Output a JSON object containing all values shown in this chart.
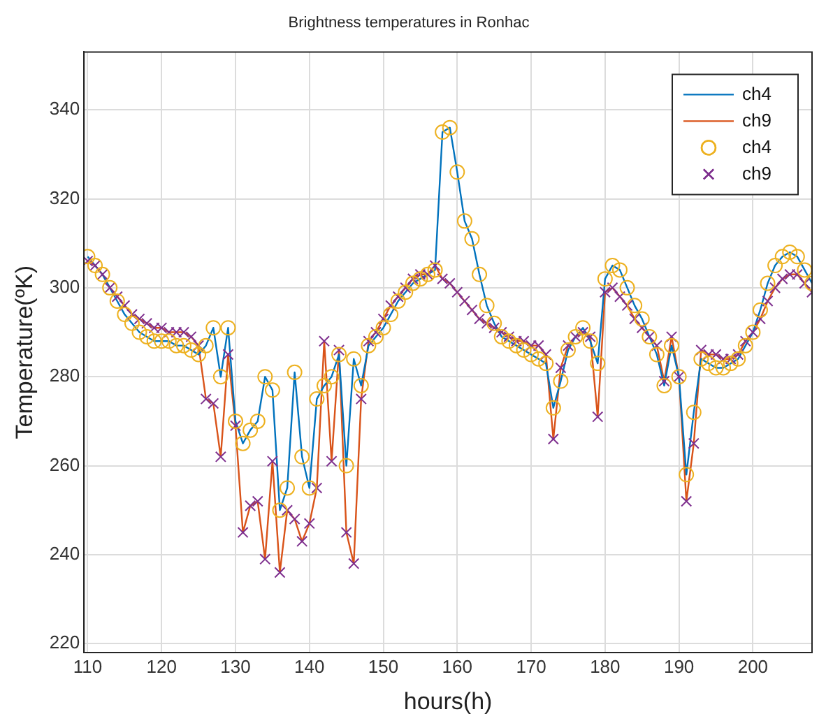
{
  "chart_data": {
    "type": "line",
    "title": "Brightness temperatures in Ronhac",
    "xlabel": "hours(h)",
    "ylabel": "Temperature(ºK)",
    "xlim": [
      109.5,
      208
    ],
    "xticks": [
      110,
      120,
      130,
      140,
      150,
      160,
      170,
      180,
      190,
      200
    ],
    "ylim": [
      218,
      353
    ],
    "yticks": [
      220,
      240,
      260,
      280,
      300,
      320,
      340
    ],
    "grid": true,
    "legend": "top right",
    "x": [
      110,
      111,
      112,
      113,
      114,
      115,
      116,
      117,
      118,
      119,
      120,
      121,
      122,
      123,
      124,
      125,
      126,
      127,
      128,
      129,
      130,
      131,
      132,
      133,
      134,
      135,
      136,
      137,
      138,
      139,
      140,
      141,
      142,
      143,
      144,
      145,
      146,
      147,
      148,
      149,
      150,
      151,
      152,
      153,
      154,
      155,
      156,
      157,
      158,
      159,
      160,
      161,
      162,
      163,
      164,
      165,
      166,
      167,
      168,
      169,
      170,
      171,
      172,
      173,
      174,
      175,
      176,
      177,
      178,
      179,
      180,
      181,
      182,
      183,
      184,
      185,
      186,
      187,
      188,
      189,
      190,
      191,
      192,
      193,
      194,
      195,
      196,
      197,
      198,
      199,
      200,
      201,
      202,
      203,
      204,
      205,
      206,
      207,
      208
    ],
    "series": [
      {
        "name": "ch4",
        "type": "line",
        "color": "#0072bd",
        "values": [
          307,
          305,
          303,
          300,
          297,
          294,
          292,
          290,
          289,
          288,
          288,
          288,
          287,
          287,
          286,
          285,
          287,
          291,
          280,
          291,
          270,
          265,
          268,
          270,
          280,
          277,
          250,
          255,
          281,
          262,
          255,
          275,
          278,
          280,
          285,
          260,
          284,
          278,
          287,
          289,
          291,
          294,
          297,
          299,
          301,
          302,
          303,
          304,
          335,
          336,
          326,
          315,
          311,
          303,
          296,
          292,
          289,
          288,
          287,
          286,
          285,
          284,
          283,
          273,
          279,
          286,
          289,
          291,
          288,
          283,
          302,
          305,
          304,
          300,
          296,
          293,
          289,
          285,
          278,
          287,
          280,
          258,
          272,
          284,
          283,
          282,
          282,
          283,
          284,
          287,
          290,
          295,
          301,
          305,
          307,
          308,
          307,
          304,
          301
        ]
      },
      {
        "name": "ch9",
        "type": "line",
        "color": "#d95319",
        "values": [
          306,
          305,
          303,
          300,
          298,
          296,
          294,
          293,
          292,
          291,
          291,
          290,
          290,
          290,
          289,
          287,
          275,
          274,
          262,
          285,
          269,
          245,
          251,
          252,
          239,
          261,
          236,
          250,
          248,
          243,
          247,
          255,
          288,
          261,
          286,
          245,
          238,
          275,
          288,
          290,
          293,
          296,
          298,
          300,
          302,
          303,
          303,
          305,
          302,
          301,
          299,
          297,
          295,
          293,
          292,
          291,
          290,
          289,
          288,
          288,
          287,
          287,
          285,
          266,
          282,
          287,
          289,
          290,
          289,
          271,
          299,
          300,
          298,
          296,
          293,
          291,
          289,
          287,
          279,
          289,
          280,
          252,
          265,
          286,
          285,
          285,
          284,
          284,
          285,
          288,
          290,
          293,
          297,
          300,
          302,
          303,
          303,
          301,
          299
        ]
      },
      {
        "name": "ch4",
        "type": "scatter",
        "marker": "circle",
        "color": "#edb120",
        "values": [
          307,
          305,
          303,
          300,
          297,
          294,
          292,
          290,
          289,
          288,
          288,
          288,
          287,
          287,
          286,
          285,
          287,
          291,
          280,
          291,
          270,
          265,
          268,
          270,
          280,
          277,
          250,
          255,
          281,
          262,
          255,
          275,
          278,
          280,
          285,
          260,
          284,
          278,
          287,
          289,
          291,
          294,
          297,
          299,
          301,
          302,
          303,
          304,
          335,
          336,
          326,
          315,
          311,
          303,
          296,
          292,
          289,
          288,
          287,
          286,
          285,
          284,
          283,
          273,
          279,
          286,
          289,
          291,
          288,
          283,
          302,
          305,
          304,
          300,
          296,
          293,
          289,
          285,
          278,
          287,
          280,
          258,
          272,
          284,
          283,
          282,
          282,
          283,
          284,
          287,
          290,
          295,
          301,
          305,
          307,
          308,
          307,
          304,
          301
        ]
      },
      {
        "name": "ch9",
        "type": "scatter",
        "marker": "cross",
        "color": "#7e2f8e",
        "values": [
          306,
          305,
          303,
          300,
          298,
          296,
          294,
          293,
          292,
          291,
          291,
          290,
          290,
          290,
          289,
          287,
          275,
          274,
          262,
          285,
          269,
          245,
          251,
          252,
          239,
          261,
          236,
          250,
          248,
          243,
          247,
          255,
          288,
          261,
          286,
          245,
          238,
          275,
          288,
          290,
          293,
          296,
          298,
          300,
          302,
          303,
          303,
          305,
          302,
          301,
          299,
          297,
          295,
          293,
          292,
          291,
          290,
          289,
          288,
          288,
          287,
          287,
          285,
          266,
          282,
          287,
          289,
          290,
          289,
          271,
          299,
          300,
          298,
          296,
          293,
          291,
          289,
          287,
          279,
          289,
          280,
          252,
          265,
          286,
          285,
          285,
          284,
          284,
          285,
          288,
          290,
          293,
          297,
          300,
          302,
          303,
          303,
          301,
          299
        ]
      }
    ]
  }
}
